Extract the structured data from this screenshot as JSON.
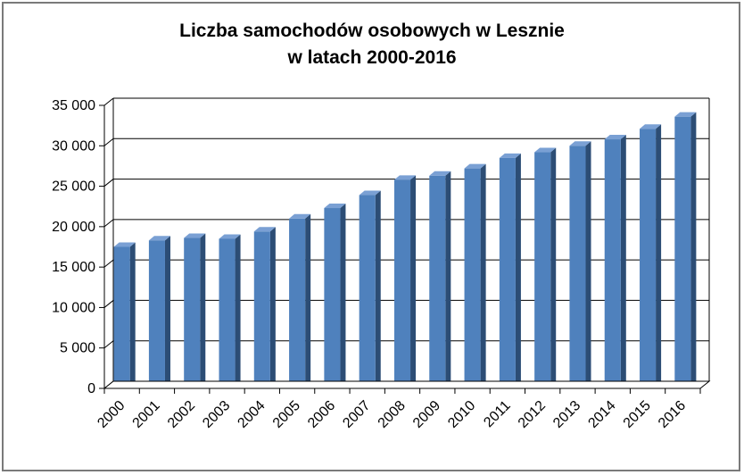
{
  "chart_data": {
    "type": "bar",
    "title_lines": [
      "Liczba samochodów  osobowych  w Lesznie",
      "w latach 2000-2016"
    ],
    "categories": [
      "2000",
      "2001",
      "2002",
      "2003",
      "2004",
      "2005",
      "2006",
      "2007",
      "2008",
      "2009",
      "2010",
      "2011",
      "2012",
      "2013",
      "2014",
      "2015",
      "2016"
    ],
    "values": [
      17500,
      18300,
      18600,
      18500,
      19400,
      21000,
      22300,
      23900,
      25800,
      26300,
      27200,
      28500,
      29200,
      30000,
      30800,
      32100,
      33600
    ],
    "ylim": [
      0,
      35000
    ],
    "yticks": [
      0,
      5000,
      10000,
      15000,
      20000,
      25000,
      30000,
      35000
    ],
    "ytick_labels": [
      "0",
      "5 000",
      "10 000",
      "15 000",
      "20 000",
      "25 000",
      "30 000",
      "35 000"
    ],
    "xlabel": "",
    "ylabel": "",
    "grid": true,
    "legend": "none",
    "colors": {
      "bar_front": "#4f81bd",
      "bar_side": "#2c4d75",
      "bar_top": "#7aa0d4",
      "grid": "#000000",
      "wall": "#ffffff"
    }
  }
}
